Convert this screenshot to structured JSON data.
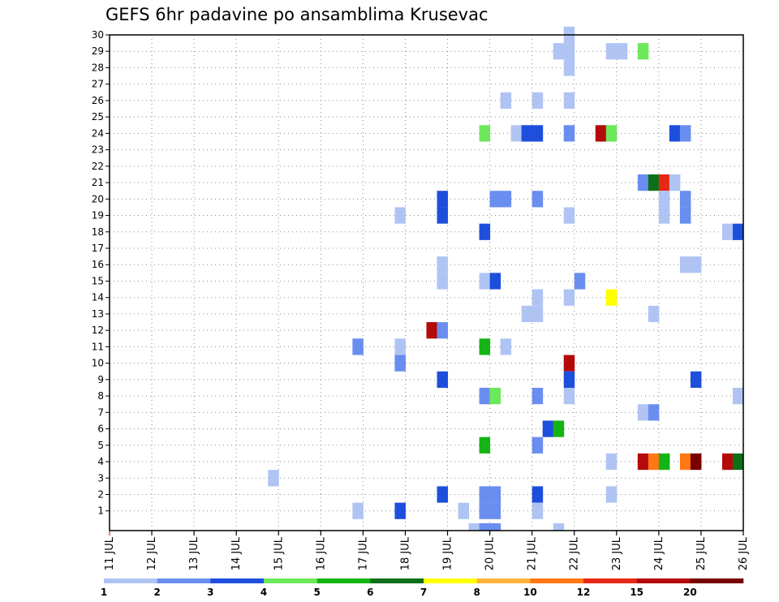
{
  "chart_data": {
    "type": "heatmap",
    "title": "GEFS 6hr padavine po ansamblima Krusevac",
    "x_tick_labels": [
      "11 JUL",
      "12 JUL",
      "13 JUL",
      "14 JUL",
      "15 JUL",
      "16 JUL",
      "17 JUL",
      "18 JUL",
      "19 JUL",
      "20 JUL",
      "21 JUL",
      "22 JUL",
      "23 JUL",
      "24 JUL",
      "25 JUL",
      "26 JUL"
    ],
    "y_tick_labels": [
      1,
      2,
      3,
      4,
      5,
      6,
      7,
      8,
      9,
      10,
      11,
      12,
      13,
      14,
      15,
      16,
      17,
      18,
      19,
      20,
      21,
      22,
      23,
      24,
      25,
      26,
      27,
      28,
      29,
      30
    ],
    "xlim_days": [
      11,
      26
    ],
    "ylim_members": [
      0,
      30
    ],
    "grid": true,
    "legend": {
      "placement": "bottom",
      "labels": [
        "1",
        "2",
        "3",
        "4",
        "5",
        "6",
        "7",
        "8",
        "10",
        "12",
        "15",
        "20"
      ],
      "colors": [
        "#b0c4f4",
        "#6a8ef0",
        "#1e4fdc",
        "#6de85a",
        "#14b414",
        "#0c7018",
        "#ffff00",
        "#ffb43c",
        "#ff7814",
        "#e62814",
        "#b40a0a",
        "#780000"
      ]
    },
    "cells_note": "each cell: [day of July (start of 6h step), ensemble member, precipitation class index into legend colors]",
    "cells": [
      [
        21.75,
        30,
        0
      ],
      [
        21.75,
        29,
        0
      ],
      [
        21.5,
        29,
        0
      ],
      [
        21.75,
        28,
        0
      ],
      [
        22.75,
        29,
        0
      ],
      [
        23.0,
        29,
        0
      ],
      [
        23.5,
        29,
        3
      ],
      [
        20.25,
        26,
        0
      ],
      [
        21.0,
        26,
        0
      ],
      [
        21.75,
        26,
        0
      ],
      [
        19.75,
        24,
        3
      ],
      [
        20.5,
        24,
        0
      ],
      [
        20.75,
        24,
        2
      ],
      [
        21.0,
        24,
        2
      ],
      [
        21.75,
        24,
        1
      ],
      [
        22.5,
        24,
        10
      ],
      [
        22.75,
        24,
        3
      ],
      [
        24.25,
        24,
        2
      ],
      [
        24.5,
        24,
        1
      ],
      [
        23.5,
        21,
        1
      ],
      [
        23.75,
        21,
        5
      ],
      [
        24.0,
        21,
        9
      ],
      [
        24.25,
        21,
        0
      ],
      [
        18.75,
        20,
        2
      ],
      [
        20.0,
        20,
        1
      ],
      [
        20.25,
        20,
        1
      ],
      [
        21.0,
        20,
        1
      ],
      [
        24.0,
        20,
        0
      ],
      [
        24.5,
        20,
        1
      ],
      [
        18.75,
        19,
        2
      ],
      [
        24.0,
        19,
        0
      ],
      [
        24.5,
        19,
        1
      ],
      [
        17.75,
        19,
        0
      ],
      [
        21.75,
        19,
        0
      ],
      [
        19.75,
        18,
        2
      ],
      [
        25.5,
        18,
        0
      ],
      [
        25.75,
        18,
        2
      ],
      [
        18.75,
        16,
        0
      ],
      [
        24.5,
        16,
        0
      ],
      [
        24.75,
        16,
        0
      ],
      [
        18.75,
        15,
        0
      ],
      [
        19.75,
        15,
        0
      ],
      [
        20.0,
        15,
        2
      ],
      [
        22.0,
        15,
        1
      ],
      [
        21.0,
        14,
        0
      ],
      [
        21.75,
        14,
        0
      ],
      [
        22.75,
        14,
        6
      ],
      [
        20.75,
        13,
        0
      ],
      [
        21.0,
        13,
        0
      ],
      [
        23.75,
        13,
        0
      ],
      [
        18.5,
        12,
        10
      ],
      [
        18.75,
        12,
        1
      ],
      [
        16.75,
        11,
        1
      ],
      [
        17.75,
        11,
        0
      ],
      [
        19.75,
        11,
        4
      ],
      [
        20.25,
        11,
        0
      ],
      [
        17.75,
        10,
        1
      ],
      [
        21.75,
        10,
        10
      ],
      [
        18.75,
        9,
        2
      ],
      [
        21.75,
        9,
        2
      ],
      [
        24.75,
        9,
        2
      ],
      [
        19.75,
        8,
        1
      ],
      [
        20.0,
        8,
        3
      ],
      [
        21.0,
        8,
        1
      ],
      [
        21.75,
        8,
        0
      ],
      [
        25.75,
        8,
        0
      ],
      [
        23.5,
        7,
        0
      ],
      [
        23.75,
        7,
        1
      ],
      [
        21.25,
        6,
        2
      ],
      [
        21.5,
        6,
        4
      ],
      [
        19.75,
        5,
        4
      ],
      [
        21.0,
        5,
        1
      ],
      [
        22.75,
        4,
        0
      ],
      [
        23.5,
        4,
        10
      ],
      [
        23.75,
        4,
        8
      ],
      [
        24.0,
        4,
        4
      ],
      [
        24.5,
        4,
        8
      ],
      [
        24.75,
        4,
        11
      ],
      [
        25.5,
        4,
        10
      ],
      [
        25.75,
        4,
        5
      ],
      [
        14.75,
        3,
        0
      ],
      [
        18.75,
        2,
        2
      ],
      [
        19.75,
        2,
        1
      ],
      [
        20.0,
        2,
        1
      ],
      [
        21.0,
        2,
        2
      ],
      [
        22.75,
        2,
        0
      ],
      [
        16.75,
        1,
        0
      ],
      [
        17.75,
        1,
        2
      ],
      [
        19.25,
        1,
        0
      ],
      [
        19.75,
        1,
        1
      ],
      [
        20.0,
        1,
        1
      ],
      [
        21.0,
        1,
        0
      ],
      [
        19.5,
        0,
        0
      ],
      [
        19.75,
        0,
        1
      ],
      [
        20.0,
        0,
        1
      ],
      [
        21.5,
        0,
        0
      ]
    ]
  }
}
